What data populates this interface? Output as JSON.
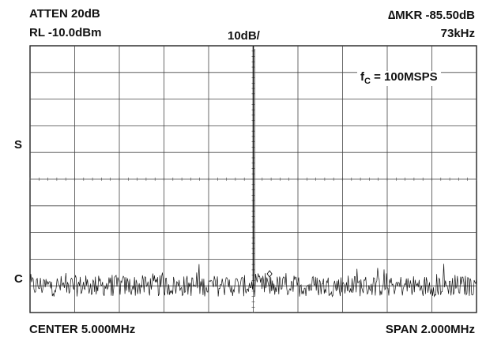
{
  "chart_data": {
    "type": "line",
    "title": "",
    "header": {
      "atten": "ATTEN 20dB",
      "ref_level": "RL -10.0dBm",
      "scale": "10dB/",
      "marker_delta": "∆MKR -85.50dB",
      "marker_freq": "73kHz"
    },
    "footer": {
      "center": "CENTER 5.000MHz",
      "span": "SPAN 2.000MHz"
    },
    "annotation": {
      "fc_symbol": "f",
      "fc_sub": "C",
      "fc_value": " = 100MSPS"
    },
    "side_markers": [
      "S",
      "C"
    ],
    "x_unit": "MHz",
    "y_unit": "dBm",
    "xlim": [
      4.0,
      6.0
    ],
    "ylim": [
      -110.0,
      -10.0
    ],
    "grid": true,
    "y_grid_divisions": 10,
    "x_grid_divisions": 10,
    "carrier": {
      "x": 5.0,
      "y": -10.0
    },
    "marker": {
      "x": 5.073,
      "y": -95.5
    },
    "noise_floor_db": -100.0,
    "noise_variation_db": 4.0
  }
}
